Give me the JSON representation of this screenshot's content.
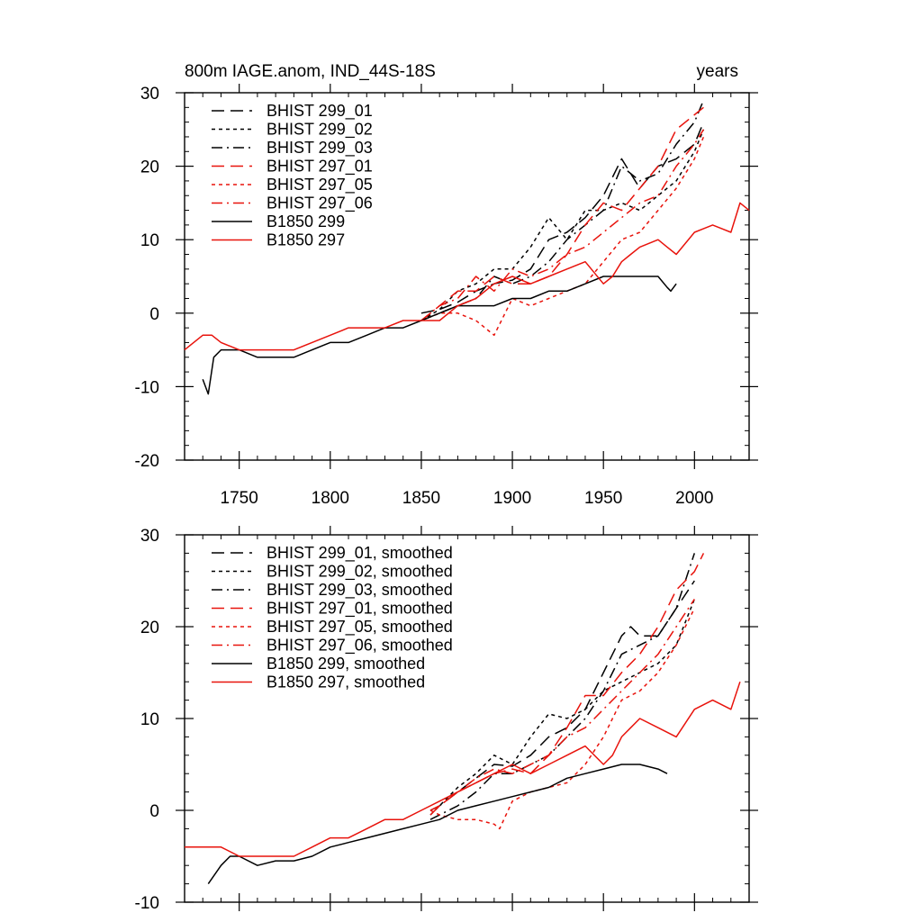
{
  "panels": [
    {
      "title_left": "800m IAGE.anom, IND_44S-18S",
      "title_right": "years"
    },
    {
      "title_left": "",
      "title_right": ""
    }
  ],
  "colors": {
    "black": "#000000",
    "red": "#e8130c"
  },
  "chart_data": [
    {
      "type": "line",
      "title": "800m IAGE.anom, IND_44S-18S",
      "units": "years",
      "xlim": [
        1720,
        2030
      ],
      "ylim": [
        -20,
        30
      ],
      "xticks": [
        1750,
        1800,
        1850,
        1900,
        1950,
        2000
      ],
      "yticks": [
        -20,
        -10,
        0,
        10,
        20,
        30
      ],
      "xtick_labels": [
        "1750",
        "1800",
        "1850",
        "1900",
        "1950",
        "2000"
      ],
      "ytick_labels": [
        "-20",
        "-10",
        "0",
        "10",
        "20",
        "30"
      ],
      "series": [
        {
          "name": "BHIST 299_01",
          "color": "black",
          "dash": "long",
          "x": [
            1850,
            1860,
            1870,
            1880,
            1890,
            1900,
            1910,
            1920,
            1930,
            1940,
            1950,
            1960,
            1970,
            1980,
            1990,
            2000,
            2005
          ],
          "y": [
            0,
            0.5,
            1.5,
            3,
            4,
            4.5,
            6,
            10,
            11,
            13,
            16,
            21,
            17,
            20,
            21,
            23,
            26
          ]
        },
        {
          "name": "BHIST 299_02",
          "color": "black",
          "dash": "short",
          "x": [
            1850,
            1860,
            1870,
            1880,
            1890,
            1900,
            1910,
            1920,
            1930,
            1940,
            1950,
            1960,
            1970,
            1980,
            1990,
            2000,
            2005
          ],
          "y": [
            -1,
            0.5,
            3,
            4,
            6,
            6,
            9,
            13,
            10,
            14,
            14,
            15,
            14,
            16,
            18,
            22,
            25
          ]
        },
        {
          "name": "BHIST 299_03",
          "color": "black",
          "dash": "dashdot",
          "x": [
            1850,
            1860,
            1870,
            1880,
            1890,
            1900,
            1910,
            1920,
            1930,
            1940,
            1950,
            1960,
            1970,
            1980,
            1990,
            2000,
            2005
          ],
          "y": [
            -1,
            0,
            1,
            2,
            5,
            4,
            5,
            7,
            10,
            12,
            14,
            20,
            18,
            19,
            23,
            26,
            29
          ]
        },
        {
          "name": "BHIST 297_01",
          "color": "red",
          "dash": "long",
          "x": [
            1850,
            1860,
            1870,
            1880,
            1890,
            1900,
            1910,
            1920,
            1930,
            1940,
            1950,
            1960,
            1970,
            1980,
            1990,
            2000,
            2005
          ],
          "y": [
            -1,
            1,
            3,
            3,
            5,
            4,
            4,
            5,
            8,
            12,
            15,
            14,
            17,
            20,
            25,
            27,
            28
          ]
        },
        {
          "name": "BHIST 297_05",
          "color": "red",
          "dash": "short",
          "x": [
            1850,
            1860,
            1870,
            1880,
            1890,
            1900,
            1910,
            1920,
            1930,
            1940,
            1950,
            1960,
            1970,
            1980,
            1990,
            2000,
            2005
          ],
          "y": [
            -1,
            0,
            0,
            -1,
            -3,
            2,
            1,
            2,
            3,
            4,
            7,
            10,
            11,
            14,
            17,
            21,
            24
          ]
        },
        {
          "name": "BHIST 297_06",
          "color": "red",
          "dash": "dashdot",
          "x": [
            1850,
            1860,
            1870,
            1880,
            1890,
            1900,
            1910,
            1920,
            1930,
            1940,
            1950,
            1960,
            1970,
            1980,
            1990,
            2000,
            2005
          ],
          "y": [
            -1,
            1,
            2,
            5,
            3,
            6,
            5,
            6,
            8,
            9,
            11,
            13,
            15,
            16,
            20,
            23,
            25
          ]
        },
        {
          "name": "B1850 299",
          "color": "black",
          "dash": "solid",
          "x": [
            1730,
            1733,
            1736,
            1740,
            1750,
            1760,
            1770,
            1780,
            1790,
            1800,
            1810,
            1820,
            1830,
            1840,
            1850,
            1860,
            1870,
            1880,
            1890,
            1900,
            1910,
            1920,
            1930,
            1940,
            1950,
            1960,
            1970,
            1980,
            1985,
            1987,
            1990
          ],
          "y": [
            -9,
            -11,
            -6,
            -5,
            -5,
            -6,
            -6,
            -6,
            -5,
            -4,
            -4,
            -3,
            -2,
            -2,
            -1,
            0,
            1,
            1,
            1,
            2,
            2,
            3,
            3,
            4,
            5,
            5,
            5,
            5,
            3.5,
            3,
            4
          ]
        },
        {
          "name": "B1850 297",
          "color": "red",
          "dash": "solid",
          "x": [
            1720,
            1725,
            1730,
            1735,
            1740,
            1750,
            1760,
            1770,
            1780,
            1790,
            1800,
            1810,
            1820,
            1830,
            1840,
            1850,
            1860,
            1870,
            1880,
            1890,
            1900,
            1910,
            1920,
            1930,
            1940,
            1950,
            1955,
            1960,
            1965,
            1970,
            1980,
            1985,
            1990,
            2000,
            2010,
            2020,
            2025,
            2030
          ],
          "y": [
            -5,
            -4,
            -3,
            -3,
            -4,
            -5,
            -5,
            -5,
            -5,
            -4,
            -3,
            -2,
            -2,
            -2,
            -1,
            -1,
            -1,
            1,
            2,
            4,
            5,
            4,
            5,
            6,
            7,
            4,
            5,
            7,
            8,
            9,
            10,
            9,
            8,
            11,
            12,
            11,
            15,
            14
          ]
        }
      ]
    },
    {
      "type": "line",
      "title": "",
      "units": "",
      "xlim": [
        1720,
        2030
      ],
      "ylim": [
        -10,
        30
      ],
      "xticks": [
        1750,
        1800,
        1850,
        1900,
        1950,
        2000
      ],
      "yticks": [
        -10,
        0,
        10,
        20,
        30
      ],
      "xtick_labels": [],
      "ytick_labels": [
        "-10",
        "0",
        "10",
        "20",
        "30"
      ],
      "series": [
        {
          "name": "BHIST 299_01, smoothed",
          "color": "black",
          "dash": "long",
          "x": [
            1855,
            1860,
            1870,
            1880,
            1890,
            1900,
            1910,
            1920,
            1930,
            1940,
            1950,
            1960,
            1965,
            1970,
            1980,
            1990,
            2000
          ],
          "y": [
            0,
            0.5,
            2,
            3.5,
            5,
            4.8,
            6,
            8,
            9,
            11,
            15,
            19,
            20,
            19,
            19,
            22,
            25
          ]
        },
        {
          "name": "BHIST 299_02, smoothed",
          "color": "black",
          "dash": "short",
          "x": [
            1855,
            1860,
            1870,
            1880,
            1890,
            1900,
            1910,
            1920,
            1930,
            1940,
            1950,
            1960,
            1970,
            1980,
            1990,
            2000
          ],
          "y": [
            -0.5,
            0.5,
            2.5,
            4,
            6,
            5,
            8,
            10.5,
            10,
            11,
            13,
            14,
            15,
            16,
            18,
            23
          ]
        },
        {
          "name": "BHIST 299_03, smoothed",
          "color": "black",
          "dash": "dashdot",
          "x": [
            1855,
            1860,
            1870,
            1880,
            1890,
            1900,
            1910,
            1920,
            1930,
            1940,
            1950,
            1960,
            1970,
            1980,
            1990,
            2000
          ],
          "y": [
            -1,
            -0.5,
            0.5,
            2,
            4,
            4,
            5,
            6,
            8,
            10,
            13,
            17,
            18,
            19,
            22,
            28
          ]
        },
        {
          "name": "BHIST 297_01, smoothed",
          "color": "red",
          "dash": "long",
          "x": [
            1855,
            1860,
            1870,
            1880,
            1890,
            1900,
            1910,
            1920,
            1930,
            1940,
            1950,
            1960,
            1970,
            1980,
            1990,
            2000,
            2005
          ],
          "y": [
            -0.5,
            0.5,
            2,
            3,
            4,
            4.5,
            4,
            6,
            9,
            12.5,
            12.5,
            15,
            17,
            20,
            24,
            26,
            28
          ]
        },
        {
          "name": "BHIST 297_05, smoothed",
          "color": "red",
          "dash": "short",
          "x": [
            1855,
            1860,
            1870,
            1880,
            1890,
            1893,
            1900,
            1910,
            1920,
            1930,
            1940,
            1950,
            1960,
            1970,
            1980,
            1990,
            2000
          ],
          "y": [
            0,
            -0.5,
            -1,
            -1,
            -1.5,
            -2,
            1,
            2,
            2.5,
            3,
            5,
            8,
            12,
            13,
            15,
            18,
            22
          ]
        },
        {
          "name": "BHIST 297_06, smoothed",
          "color": "red",
          "dash": "dashdot",
          "x": [
            1855,
            1860,
            1870,
            1880,
            1890,
            1900,
            1910,
            1920,
            1930,
            1940,
            1950,
            1960,
            1970,
            1980,
            1990,
            2000
          ],
          "y": [
            0,
            0.5,
            2,
            3.5,
            4.5,
            4,
            5,
            6,
            8,
            9,
            11,
            13,
            15,
            17,
            20,
            23
          ]
        },
        {
          "name": "B1850 299, smoothed",
          "color": "black",
          "dash": "solid",
          "x": [
            1733,
            1740,
            1745,
            1750,
            1760,
            1770,
            1780,
            1790,
            1800,
            1810,
            1820,
            1830,
            1840,
            1850,
            1860,
            1870,
            1880,
            1890,
            1900,
            1910,
            1920,
            1930,
            1940,
            1950,
            1960,
            1970,
            1980,
            1985
          ],
          "y": [
            -8,
            -6,
            -5,
            -5,
            -6,
            -5.5,
            -5.5,
            -5,
            -4,
            -3.5,
            -3,
            -2.5,
            -2,
            -1.5,
            -1,
            0,
            0.5,
            1,
            1.5,
            2,
            2.5,
            3.5,
            4,
            4.5,
            5,
            5,
            4.5,
            4
          ]
        },
        {
          "name": "B1850 297, smoothed",
          "color": "red",
          "dash": "solid",
          "x": [
            1720,
            1730,
            1740,
            1750,
            1760,
            1770,
            1780,
            1790,
            1800,
            1810,
            1820,
            1830,
            1840,
            1850,
            1860,
            1870,
            1880,
            1890,
            1900,
            1910,
            1920,
            1930,
            1940,
            1950,
            1955,
            1960,
            1965,
            1970,
            1980,
            1990,
            2000,
            2010,
            2020,
            2025
          ],
          "y": [
            -4,
            -4,
            -4,
            -5,
            -5,
            -5,
            -5,
            -4,
            -3,
            -3,
            -2,
            -1,
            -1,
            0,
            1,
            2,
            3,
            4,
            5,
            4,
            5,
            6,
            7,
            5,
            6,
            8,
            9,
            10,
            9,
            8,
            11,
            12,
            11,
            14
          ]
        }
      ]
    }
  ]
}
